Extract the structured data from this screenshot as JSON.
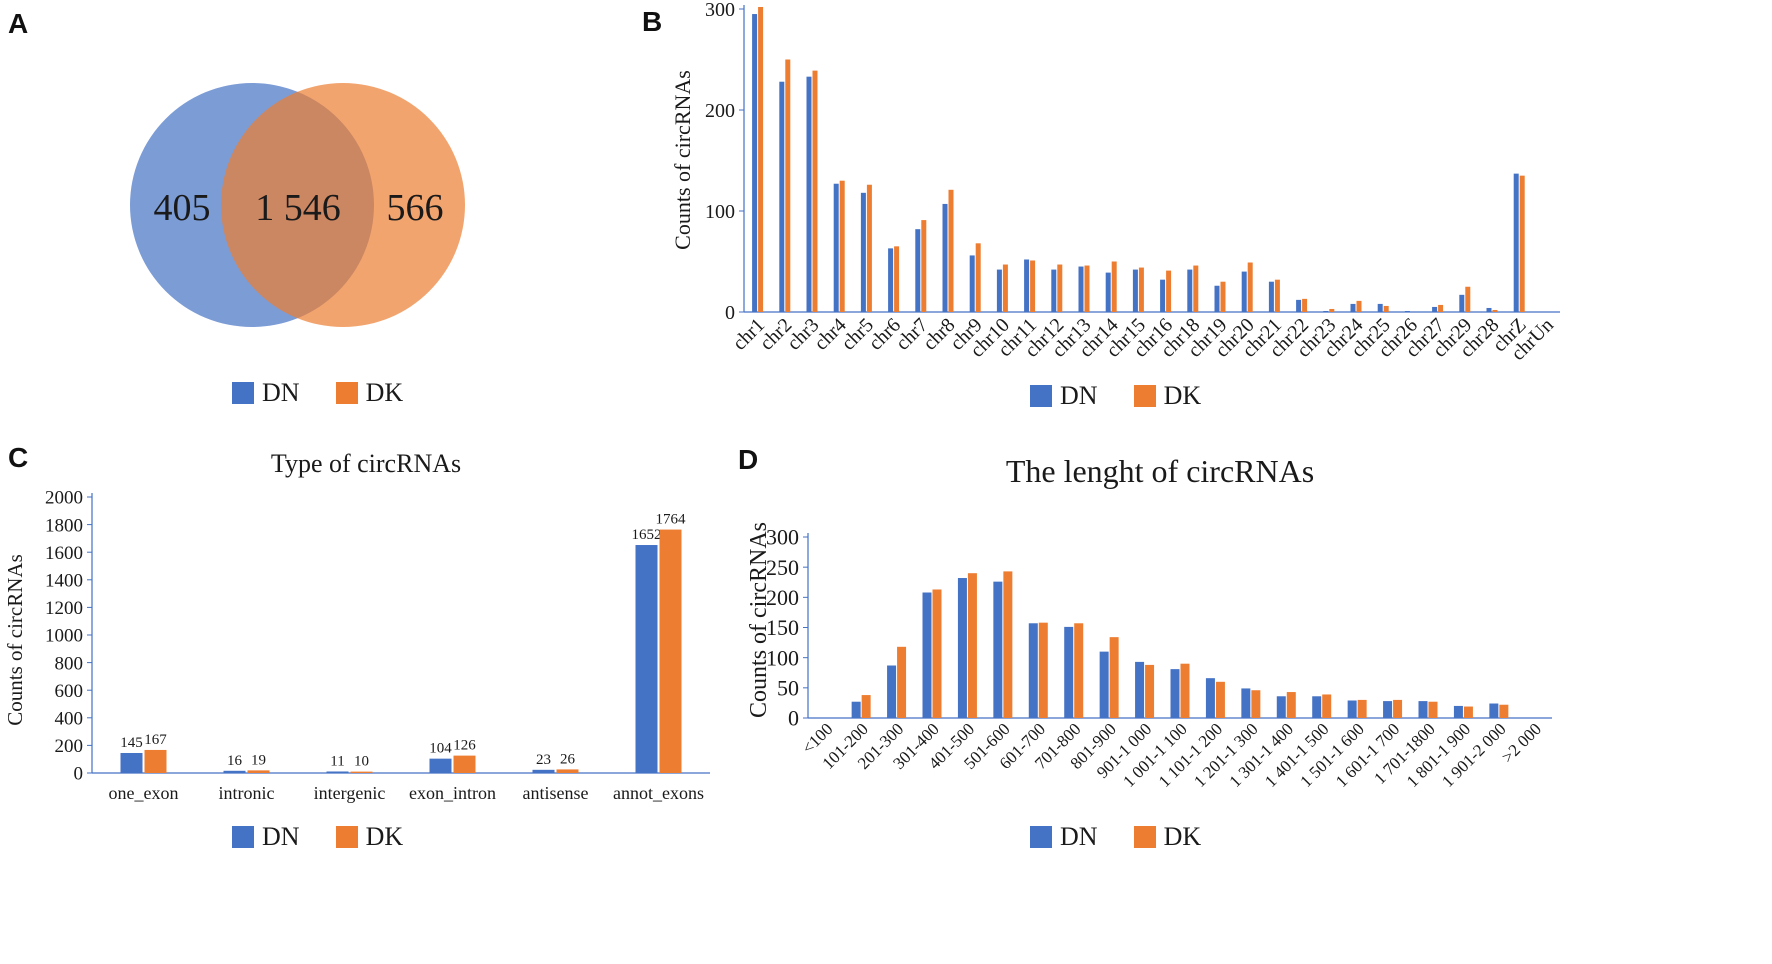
{
  "colors": {
    "DN": "#4472C4",
    "DK": "#ED7D31"
  },
  "panels": {
    "a": "A",
    "b": "B",
    "c": "C",
    "d": "D"
  },
  "legend": {
    "dn": "DN",
    "dk": "DK"
  },
  "venn": {
    "left_only": "405",
    "overlap": "1 546",
    "right_only": "566"
  },
  "chart_data": [
    {
      "id": "B",
      "type": "bar",
      "title": "",
      "xlabel": "",
      "ylabel": "Counts of circRNAs",
      "ylim": [
        0,
        300
      ],
      "yticks": [
        0,
        100,
        200,
        300
      ],
      "categories": [
        "chr1",
        "chr2",
        "chr3",
        "chr4",
        "chr5",
        "chr6",
        "chr7",
        "chr8",
        "chr9",
        "chr10",
        "chr11",
        "chr12",
        "chr13",
        "chr14",
        "chr15",
        "chr16",
        "chr18",
        "chr19",
        "chr20",
        "chr21",
        "chr22",
        "chr23",
        "chr24",
        "chr25",
        "chr26",
        "chr27",
        "chr29",
        "chr28",
        "chrZ",
        "chrUn"
      ],
      "series": [
        {
          "name": "DN",
          "values": [
            295,
            228,
            233,
            127,
            118,
            63,
            82,
            107,
            56,
            42,
            52,
            42,
            45,
            39,
            42,
            32,
            42,
            26,
            40,
            30,
            12,
            1,
            8,
            8,
            1,
            5,
            17,
            4,
            137,
            0
          ]
        },
        {
          "name": "DK",
          "values": [
            302,
            250,
            239,
            130,
            126,
            65,
            91,
            121,
            68,
            47,
            51,
            47,
            46,
            50,
            44,
            41,
            46,
            30,
            49,
            32,
            13,
            3,
            11,
            6,
            0,
            7,
            25,
            2,
            135,
            0
          ]
        }
      ]
    },
    {
      "id": "C",
      "type": "bar",
      "title": "Type of circRNAs",
      "xlabel": "",
      "ylabel": "Counts of circRNAs",
      "ylim": [
        0,
        2000
      ],
      "yticks": [
        0,
        200,
        400,
        600,
        800,
        1000,
        1200,
        1400,
        1600,
        1800,
        2000
      ],
      "categories": [
        "one_exon",
        "intronic",
        "intergenic",
        "exon_intron",
        "antisense",
        "annot_exons"
      ],
      "series": [
        {
          "name": "DN",
          "values": [
            145,
            16,
            11,
            104,
            23,
            1652
          ]
        },
        {
          "name": "DK",
          "values": [
            167,
            19,
            10,
            126,
            26,
            1764
          ]
        }
      ]
    },
    {
      "id": "D",
      "type": "bar",
      "title": "The lenght of circRNAs",
      "xlabel": "",
      "ylabel": "Counts of circRNAs",
      "ylim": [
        0,
        300
      ],
      "yticks": [
        0,
        50,
        100,
        150,
        200,
        250,
        300
      ],
      "categories": [
        "<100",
        "101-200",
        "201-300",
        "301-400",
        "401-500",
        "501-600",
        "601-700",
        "701-800",
        "801-900",
        "901-1 000",
        "1 001-1 100",
        "1 101-1 200",
        "1 201-1 300",
        "1 301-1 400",
        "1 401-1 500",
        "1 501-1 600",
        "1 601-1 700",
        "1 701-1800",
        "1 801-1 900",
        "1 901-2 000",
        ">2 000"
      ],
      "series": [
        {
          "name": "DN",
          "values": [
            0,
            27,
            87,
            208,
            232,
            226,
            157,
            151,
            110,
            93,
            81,
            66,
            49,
            36,
            36,
            29,
            28,
            28,
            20,
            24,
            0
          ]
        },
        {
          "name": "DK",
          "values": [
            0,
            38,
            118,
            213,
            240,
            243,
            158,
            157,
            134,
            88,
            90,
            60,
            46,
            43,
            39,
            30,
            30,
            27,
            19,
            22,
            0
          ]
        }
      ]
    }
  ]
}
